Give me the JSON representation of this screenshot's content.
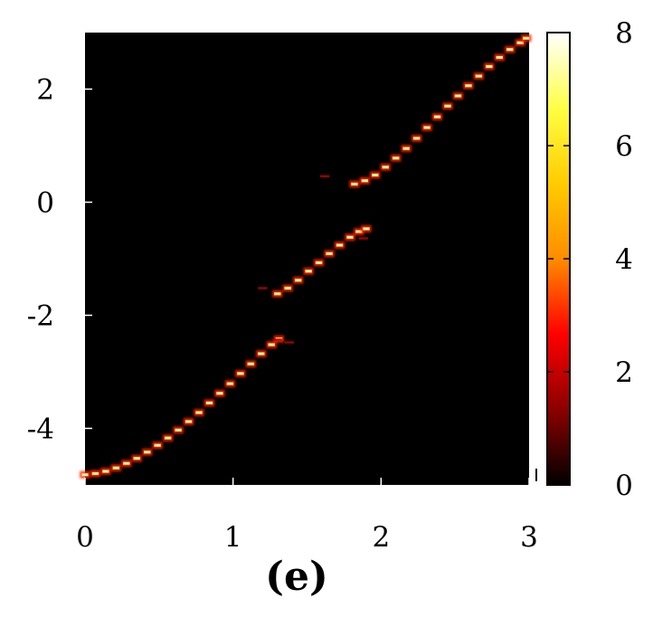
{
  "chart_data": {
    "type": "heatmap",
    "panel_label": "(e)",
    "title": "",
    "xlabel": "",
    "ylabel": "",
    "xlim": [
      0,
      3
    ],
    "ylim": [
      -5,
      3
    ],
    "xticks": [
      "0",
      "1",
      "2",
      "3"
    ],
    "yticks": [
      "-4",
      "-2",
      "0",
      "2"
    ],
    "background_color": "#000000",
    "colorbar": {
      "range": [
        0,
        8
      ],
      "ticks": [
        "0",
        "2",
        "4",
        "6",
        "8"
      ],
      "colormap": [
        "#000000",
        "#8b0000",
        "#ff0000",
        "#ff8c00",
        "#ffcc00",
        "#ffff44",
        "#ffffff"
      ]
    },
    "band": {
      "segment_width": 0.07,
      "peak_value": 7.5,
      "branches": [
        {
          "points": [
            [
              0.0,
              -4.82
            ],
            [
              0.07,
              -4.8
            ],
            [
              0.14,
              -4.76
            ],
            [
              0.21,
              -4.7
            ],
            [
              0.28,
              -4.62
            ],
            [
              0.35,
              -4.53
            ],
            [
              0.42,
              -4.42
            ],
            [
              0.49,
              -4.3
            ],
            [
              0.56,
              -4.17
            ],
            [
              0.63,
              -4.03
            ],
            [
              0.7,
              -3.88
            ],
            [
              0.77,
              -3.72
            ],
            [
              0.84,
              -3.55
            ],
            [
              0.91,
              -3.38
            ],
            [
              0.98,
              -3.21
            ],
            [
              1.05,
              -3.03
            ],
            [
              1.12,
              -2.86
            ],
            [
              1.19,
              -2.68
            ],
            [
              1.26,
              -2.52
            ],
            [
              1.31,
              -2.42
            ]
          ]
        },
        {
          "points": [
            [
              1.3,
              -1.62
            ],
            [
              1.37,
              -1.52
            ],
            [
              1.44,
              -1.38
            ],
            [
              1.51,
              -1.22
            ],
            [
              1.58,
              -1.07
            ],
            [
              1.65,
              -0.91
            ],
            [
              1.72,
              -0.76
            ],
            [
              1.79,
              -0.62
            ],
            [
              1.85,
              -0.52
            ],
            [
              1.9,
              -0.47
            ]
          ]
        },
        {
          "points": [
            [
              1.82,
              0.32
            ],
            [
              1.89,
              0.38
            ],
            [
              1.96,
              0.48
            ],
            [
              2.03,
              0.62
            ],
            [
              2.1,
              0.78
            ],
            [
              2.17,
              0.95
            ],
            [
              2.24,
              1.13
            ],
            [
              2.31,
              1.32
            ],
            [
              2.38,
              1.51
            ],
            [
              2.45,
              1.7
            ],
            [
              2.52,
              1.88
            ],
            [
              2.59,
              2.06
            ],
            [
              2.66,
              2.23
            ],
            [
              2.73,
              2.4
            ],
            [
              2.8,
              2.56
            ],
            [
              2.87,
              2.7
            ],
            [
              2.94,
              2.82
            ],
            [
              2.98,
              2.9
            ]
          ]
        }
      ],
      "faint_segments": [
        [
          1.3,
          -2.43
        ],
        [
          1.38,
          -2.48
        ],
        [
          1.2,
          -1.52
        ],
        [
          1.62,
          0.46
        ],
        [
          1.88,
          -0.64
        ]
      ]
    }
  }
}
